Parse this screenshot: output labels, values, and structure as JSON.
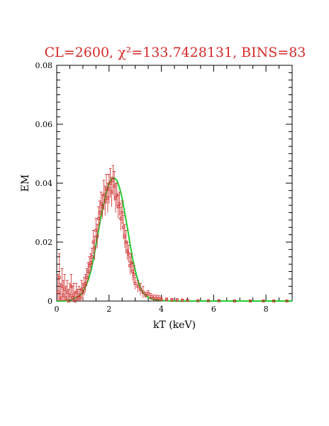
{
  "chart_data": {
    "type": "scatter",
    "title": "CL=2600, χ²=133.7428131, BINS=83",
    "xlabel": "kT (keV)",
    "ylabel": "EM",
    "xlim": [
      0,
      9
    ],
    "ylim": [
      0,
      0.08
    ],
    "x_ticks": [
      0,
      2,
      4,
      6,
      8
    ],
    "y_ticks": [
      0,
      0.02,
      0.04,
      0.06,
      0.08
    ],
    "x_tick_labels": [
      "0",
      "2",
      "4",
      "6",
      "8"
    ],
    "y_tick_labels": [
      "0",
      "0.02",
      "0.04",
      "0.06",
      "0.08"
    ],
    "grid": false,
    "colors": {
      "title": "#d42a2a",
      "data": "#cc2222",
      "model": "#22cc33",
      "axes": "#000000"
    },
    "series": [
      {
        "kind": "points_with_errorbars",
        "color": "#cc2222",
        "x": [
          0.05,
          0.1,
          0.15,
          0.2,
          0.25,
          0.3,
          0.35,
          0.4,
          0.45,
          0.5,
          0.55,
          0.6,
          0.65,
          0.7,
          0.75,
          0.8,
          0.85,
          0.9,
          0.95,
          1.0,
          1.05,
          1.1,
          1.15,
          1.2,
          1.25,
          1.3,
          1.35,
          1.4,
          1.45,
          1.5,
          1.55,
          1.6,
          1.65,
          1.7,
          1.75,
          1.8,
          1.85,
          1.9,
          1.95,
          2.0,
          2.05,
          2.1,
          2.15,
          2.2,
          2.25,
          2.3,
          2.35,
          2.4,
          2.45,
          2.5,
          2.55,
          2.6,
          2.65,
          2.7,
          2.75,
          2.8,
          2.85,
          2.9,
          2.95,
          3.0,
          3.1,
          3.2,
          3.3,
          3.4,
          3.5,
          3.6,
          3.7,
          3.8,
          3.9,
          4.0,
          4.2,
          4.4,
          4.6,
          4.8,
          5.0,
          5.4,
          5.8,
          6.2,
          6.8,
          7.4,
          7.9,
          8.3,
          8.8
        ],
        "y": [
          0.003,
          0.008,
          0.001,
          0.005,
          0.002,
          0.004,
          0.001,
          0.003,
          0.0,
          0.002,
          0.005,
          0.001,
          0.002,
          0.0,
          0.003,
          0.001,
          0.002,
          0.001,
          0.004,
          0.003,
          0.005,
          0.006,
          0.008,
          0.01,
          0.012,
          0.013,
          0.015,
          0.02,
          0.018,
          0.024,
          0.022,
          0.028,
          0.03,
          0.033,
          0.032,
          0.036,
          0.034,
          0.038,
          0.035,
          0.038,
          0.04,
          0.037,
          0.041,
          0.039,
          0.035,
          0.036,
          0.032,
          0.033,
          0.028,
          0.03,
          0.025,
          0.022,
          0.02,
          0.017,
          0.016,
          0.012,
          0.013,
          0.01,
          0.009,
          0.006,
          0.005,
          0.004,
          0.003,
          0.002,
          0.0025,
          0.0015,
          0.001,
          0.001,
          0.0008,
          0.0005,
          0.0004,
          0.0003,
          0.0003,
          0.0002,
          0.0002,
          0.0001,
          0.0001,
          0.0001,
          0.0,
          0.0,
          0.0,
          0.0,
          0.0
        ],
        "err": [
          0.006,
          0.008,
          0.005,
          0.006,
          0.005,
          0.005,
          0.004,
          0.004,
          0.004,
          0.004,
          0.004,
          0.004,
          0.004,
          0.003,
          0.003,
          0.003,
          0.003,
          0.003,
          0.003,
          0.003,
          0.003,
          0.003,
          0.003,
          0.003,
          0.003,
          0.003,
          0.003,
          0.004,
          0.004,
          0.004,
          0.004,
          0.004,
          0.004,
          0.004,
          0.004,
          0.005,
          0.005,
          0.005,
          0.005,
          0.005,
          0.005,
          0.005,
          0.005,
          0.005,
          0.005,
          0.004,
          0.004,
          0.004,
          0.004,
          0.004,
          0.004,
          0.004,
          0.004,
          0.003,
          0.003,
          0.003,
          0.003,
          0.003,
          0.003,
          0.002,
          0.002,
          0.002,
          0.002,
          0.001,
          0.001,
          0.001,
          0.001,
          0.001,
          0.001,
          0.0008,
          0.0006,
          0.0006,
          0.0005,
          0.0005,
          0.0004,
          0.0004,
          0.0003,
          0.0003,
          0.0003,
          0.0003,
          0.0003,
          0.0003,
          0.0003
        ]
      },
      {
        "kind": "model_curve",
        "color": "#22cc33",
        "x": [
          0,
          0.3,
          0.5,
          0.7,
          0.9,
          1.0,
          1.1,
          1.2,
          1.3,
          1.4,
          1.5,
          1.6,
          1.7,
          1.8,
          1.9,
          2.0,
          2.1,
          2.2,
          2.3,
          2.4,
          2.5,
          2.6,
          2.7,
          2.8,
          2.9,
          3.0,
          3.1,
          3.2,
          3.3,
          3.5,
          3.7,
          4.0,
          4.5,
          5.0,
          6.0,
          7.0,
          8.0,
          9.0
        ],
        "y": [
          0,
          0,
          0.0003,
          0.001,
          0.002,
          0.003,
          0.005,
          0.007,
          0.01,
          0.014,
          0.019,
          0.024,
          0.029,
          0.033,
          0.037,
          0.04,
          0.0415,
          0.0418,
          0.041,
          0.0385,
          0.035,
          0.03,
          0.025,
          0.0195,
          0.0145,
          0.0105,
          0.007,
          0.0045,
          0.0028,
          0.0012,
          0.0005,
          0.0002,
          0.0,
          0.0,
          0.0,
          0.0,
          0.0,
          0.0
        ]
      }
    ]
  }
}
